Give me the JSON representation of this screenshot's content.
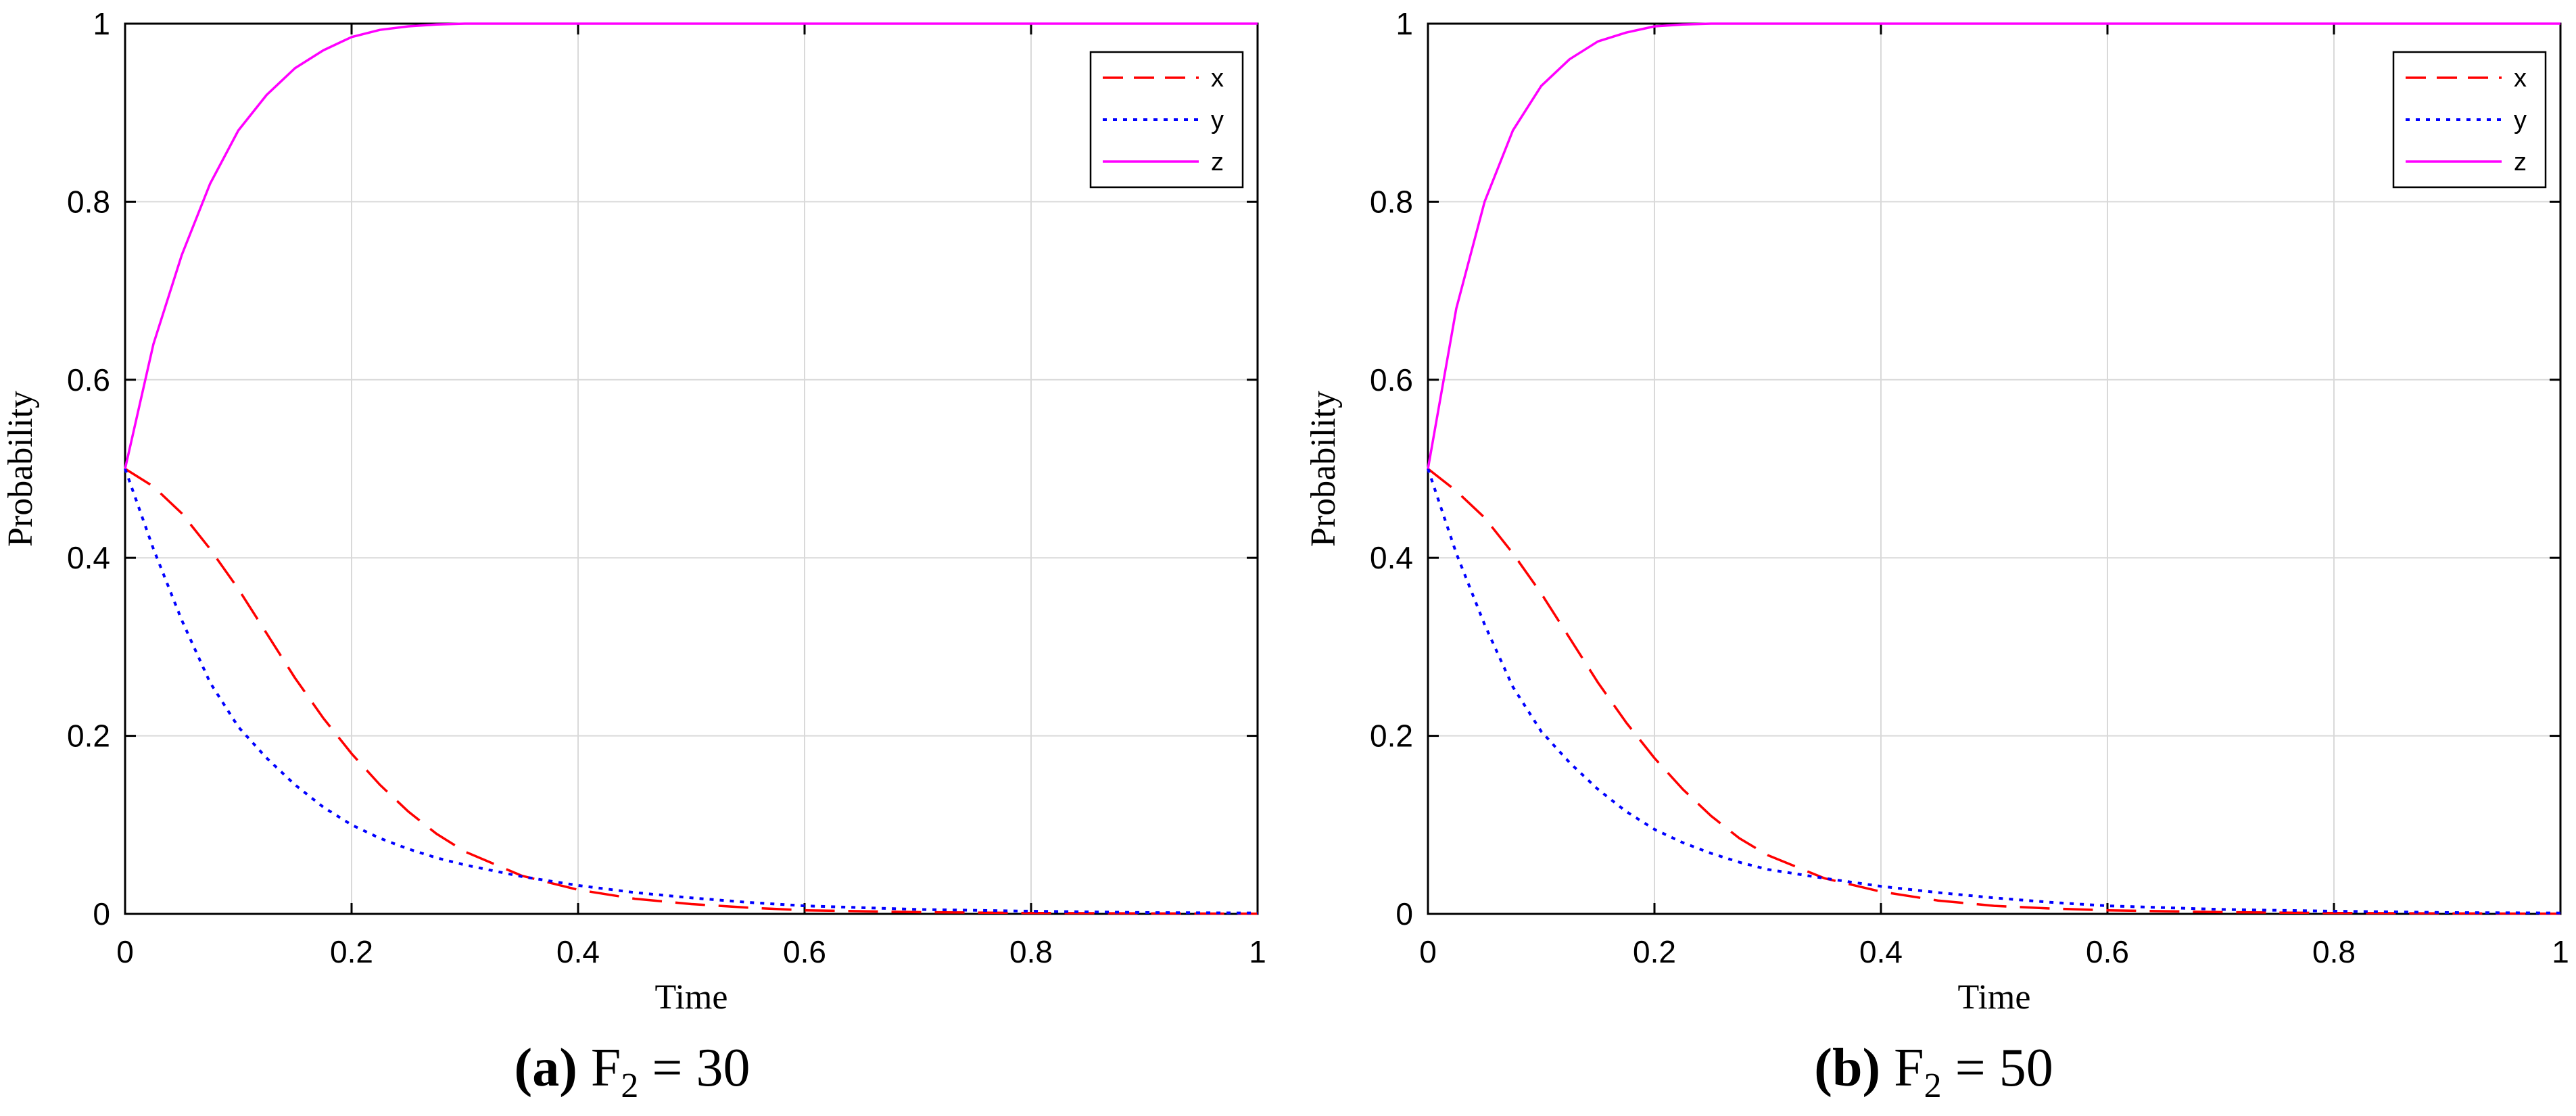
{
  "colors": {
    "x": "#ff0000",
    "y": "#0000ff",
    "z": "#ff00ff",
    "grid": "#d9d9d9",
    "axis": "#000000"
  },
  "chart_data": [
    {
      "type": "line",
      "caption": {
        "label": "a",
        "variable": "F",
        "subscript": "2",
        "relation": "= 30"
      },
      "xlabel": "Time",
      "ylabel": "Probability",
      "xlim": [
        0,
        1
      ],
      "ylim": [
        0,
        1
      ],
      "xticks": [
        "0",
        "0.2",
        "0.4",
        "0.6",
        "0.8",
        "1"
      ],
      "yticks": [
        "0",
        "0.2",
        "0.4",
        "0.6",
        "0.8",
        "1"
      ],
      "grid": true,
      "legend_position": "top-right",
      "x": [
        0,
        0.025,
        0.05,
        0.075,
        0.1,
        0.125,
        0.15,
        0.175,
        0.2,
        0.225,
        0.25,
        0.275,
        0.3,
        0.35,
        0.4,
        0.45,
        0.5,
        0.55,
        0.6,
        0.7,
        0.8,
        0.9,
        1.0
      ],
      "series": [
        {
          "name": "x",
          "style": "dashed",
          "values": [
            0.5,
            0.48,
            0.45,
            0.41,
            0.365,
            0.315,
            0.265,
            0.22,
            0.18,
            0.145,
            0.115,
            0.09,
            0.07,
            0.043,
            0.027,
            0.017,
            0.011,
            0.007,
            0.004,
            0.002,
            0.001,
            0.0005,
            0.0002
          ]
        },
        {
          "name": "y",
          "style": "dotted",
          "values": [
            0.5,
            0.41,
            0.33,
            0.26,
            0.21,
            0.175,
            0.145,
            0.12,
            0.1,
            0.085,
            0.073,
            0.063,
            0.055,
            0.042,
            0.032,
            0.024,
            0.018,
            0.013,
            0.009,
            0.005,
            0.003,
            0.0015,
            0.001
          ]
        },
        {
          "name": "z",
          "style": "solid",
          "values": [
            0.5,
            0.64,
            0.74,
            0.82,
            0.88,
            0.92,
            0.95,
            0.97,
            0.985,
            0.993,
            0.997,
            0.999,
            1,
            1,
            1,
            1,
            1,
            1,
            1,
            1,
            1,
            1,
            1
          ]
        }
      ]
    },
    {
      "type": "line",
      "caption": {
        "label": "b",
        "variable": "F",
        "subscript": "2",
        "relation": "= 50"
      },
      "xlabel": "Time",
      "ylabel": "Probability",
      "xlim": [
        0,
        1
      ],
      "ylim": [
        0,
        1
      ],
      "xticks": [
        "0",
        "0.2",
        "0.4",
        "0.6",
        "0.8",
        "1"
      ],
      "yticks": [
        "0",
        "0.2",
        "0.4",
        "0.6",
        "0.8",
        "1"
      ],
      "grid": true,
      "legend_position": "top-right",
      "x": [
        0,
        0.025,
        0.05,
        0.075,
        0.1,
        0.125,
        0.15,
        0.175,
        0.2,
        0.225,
        0.25,
        0.275,
        0.3,
        0.35,
        0.4,
        0.45,
        0.5,
        0.55,
        0.6,
        0.7,
        0.8,
        0.9,
        1.0
      ],
      "series": [
        {
          "name": "x",
          "style": "dashed",
          "values": [
            0.5,
            0.475,
            0.445,
            0.405,
            0.36,
            0.31,
            0.26,
            0.215,
            0.175,
            0.14,
            0.11,
            0.085,
            0.066,
            0.04,
            0.025,
            0.015,
            0.009,
            0.006,
            0.004,
            0.002,
            0.001,
            0.0005,
            0.0002
          ]
        },
        {
          "name": "y",
          "style": "dotted",
          "values": [
            0.5,
            0.405,
            0.325,
            0.255,
            0.205,
            0.17,
            0.14,
            0.115,
            0.095,
            0.08,
            0.068,
            0.058,
            0.05,
            0.04,
            0.031,
            0.024,
            0.018,
            0.013,
            0.009,
            0.005,
            0.003,
            0.0015,
            0.001
          ]
        },
        {
          "name": "z",
          "style": "solid",
          "values": [
            0.5,
            0.68,
            0.8,
            0.88,
            0.93,
            0.96,
            0.98,
            0.99,
            0.997,
            0.999,
            1,
            1,
            1,
            1,
            1,
            1,
            1,
            1,
            1,
            1,
            1,
            1,
            1
          ]
        }
      ]
    }
  ]
}
